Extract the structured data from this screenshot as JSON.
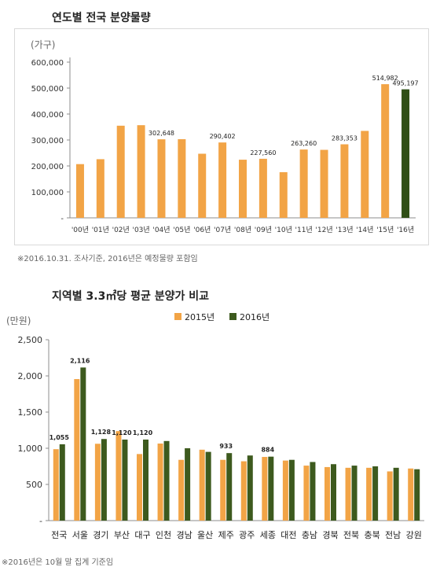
{
  "colors": {
    "bar_2015": "#f2a446",
    "bar_2016": "#3d5a1e",
    "axis": "#8c8c8c",
    "frame": "#d9d9d9"
  },
  "chart1_title": "연도별 전국 분양물량",
  "chart1_note": "※2016.10.31. 조사기준, 2016년은 예정물량 포함임",
  "chart2_title": "지역별 3.3㎡당 평균 분양가 비교",
  "chart2_note": "※2016년은 10월 말 집계 기준임",
  "chart_data": [
    {
      "type": "bar",
      "title": "연도별 전국 분양물량",
      "unit_label": "(가구)",
      "ylim": [
        0,
        600000
      ],
      "yticks": [
        0,
        100000,
        200000,
        300000,
        400000,
        500000,
        600000
      ],
      "ytick_labels": [
        "-",
        "100,000",
        "200,000",
        "300,000",
        "400,000",
        "500,000",
        "600,000"
      ],
      "categories": [
        "'00년",
        "'01년",
        "'02년",
        "'03년",
        "'04년",
        "'05년",
        "'06년",
        "'07년",
        "'08년",
        "'09년",
        "'10년",
        "'11년",
        "'12년",
        "'13년",
        "'14년",
        "'15년",
        "'16년"
      ],
      "values": [
        207000,
        226000,
        355000,
        357000,
        302648,
        303000,
        247000,
        290402,
        224000,
        227560,
        176000,
        263260,
        262000,
        283353,
        335000,
        514982,
        495197
      ],
      "data_labels": [
        "",
        "",
        "",
        "",
        "302,648",
        "",
        "",
        "290,402",
        "",
        "227,560",
        "",
        "263,260",
        "",
        "283,353",
        "",
        "514,982",
        "495,197"
      ],
      "bar_colors": [
        "#f2a446",
        "#f2a446",
        "#f2a446",
        "#f2a446",
        "#f2a446",
        "#f2a446",
        "#f2a446",
        "#f2a446",
        "#f2a446",
        "#f2a446",
        "#f2a446",
        "#f2a446",
        "#f2a446",
        "#f2a446",
        "#f2a446",
        "#f2a446",
        "#2f4f16"
      ],
      "grid": false
    },
    {
      "type": "bar",
      "title": "지역별 3.3㎡당 평균 분양가 비교",
      "unit_label": "(만원)",
      "ylim": [
        0,
        2500
      ],
      "yticks": [
        0,
        500,
        1000,
        1500,
        2000,
        2500
      ],
      "ytick_labels": [
        "-",
        "500",
        "1,000",
        "1,500",
        "2,000",
        "2,500"
      ],
      "categories": [
        "전국",
        "서울",
        "경기",
        "부산",
        "대구",
        "인천",
        "경남",
        "울산",
        "제주",
        "광주",
        "세종",
        "대전",
        "충남",
        "경북",
        "전북",
        "충북",
        "전남",
        "강원"
      ],
      "series": [
        {
          "name": "2015년",
          "values": [
            987,
            1956,
            1062,
            1237,
            920,
            1065,
            840,
            980,
            840,
            820,
            880,
            830,
            760,
            740,
            730,
            730,
            680,
            720
          ],
          "data_labels": [
            "",
            "",
            "",
            "",
            "",
            "",
            "",
            "",
            "",
            "",
            "",
            "",
            "",
            "",
            "",
            "",
            "",
            ""
          ]
        },
        {
          "name": "2016년",
          "values": [
            1055,
            2116,
            1128,
            1120,
            1120,
            1100,
            1000,
            950,
            933,
            900,
            884,
            840,
            810,
            780,
            760,
            750,
            730,
            710
          ],
          "data_labels": [
            "1,055",
            "2,116",
            "1,128",
            "1,120",
            "1,120",
            "",
            "",
            "",
            "933",
            "",
            "884",
            "",
            "",
            "",
            "",
            "",
            "",
            ""
          ]
        }
      ],
      "legend": "top",
      "grid": false
    }
  ]
}
